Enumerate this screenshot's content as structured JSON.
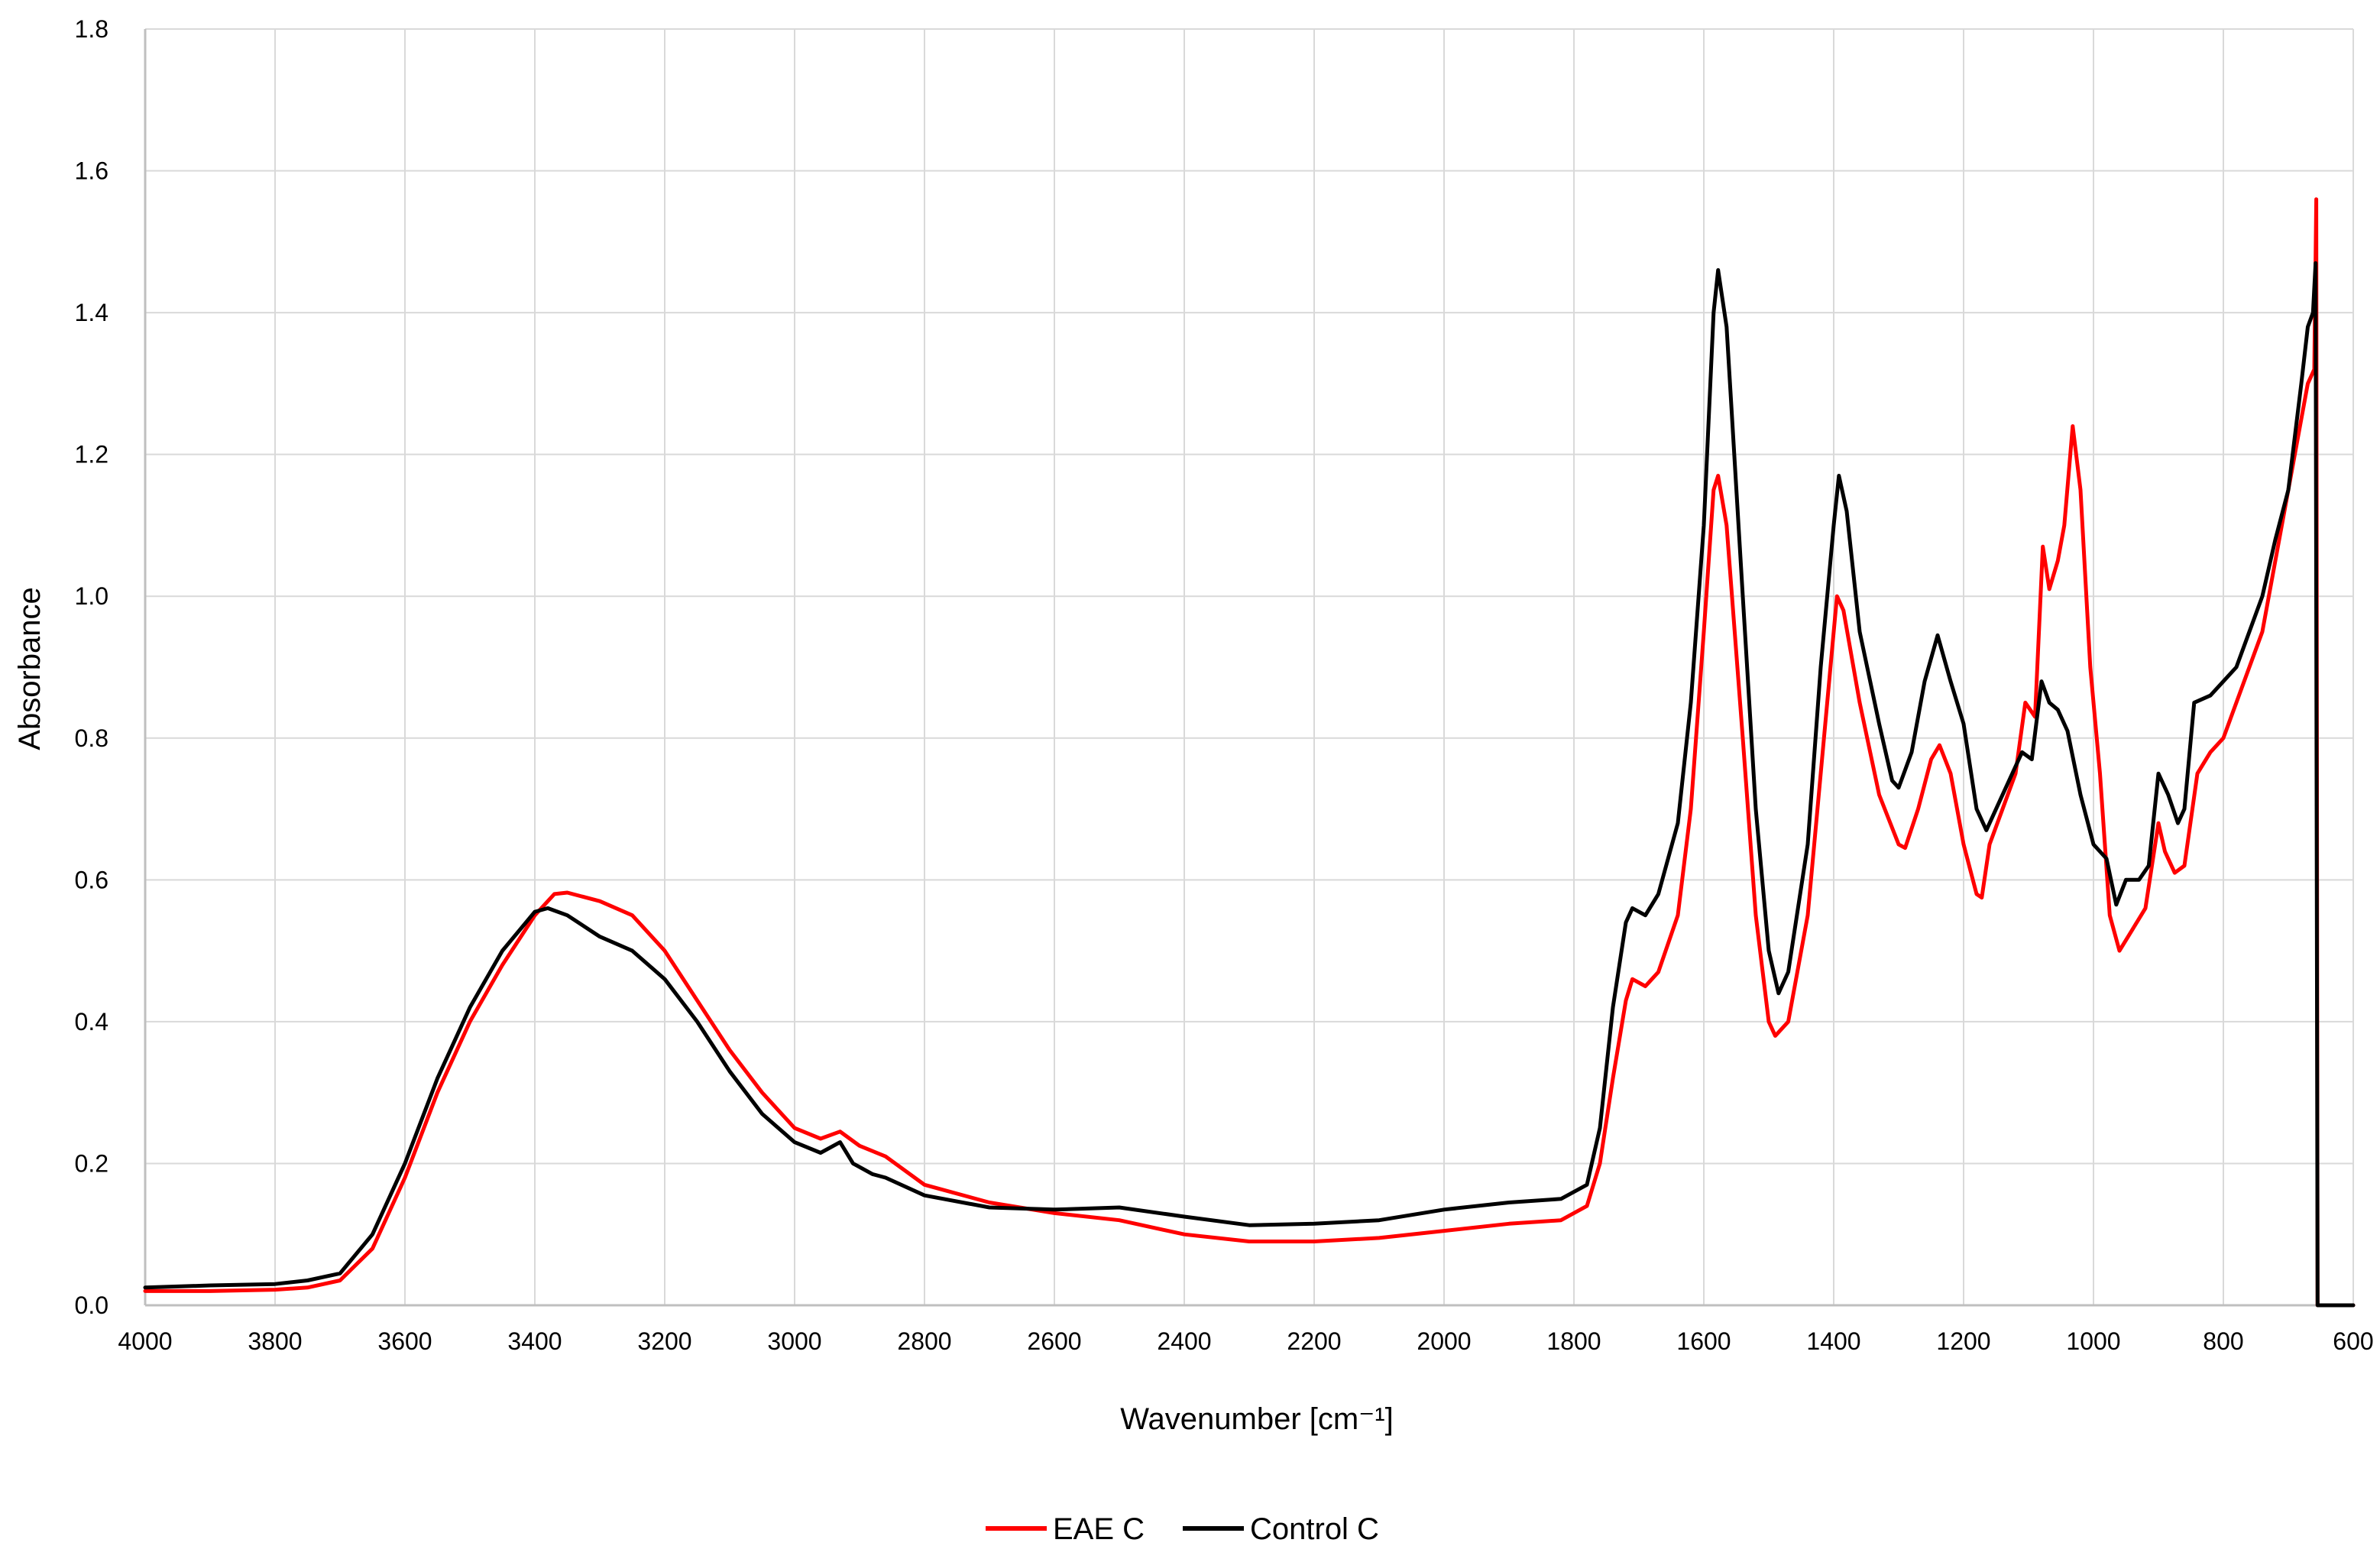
{
  "chart_data": {
    "type": "line",
    "title": "",
    "xlabel": "Wavenumber   [cm⁻¹]",
    "ylabel": "Absorbance",
    "xlim": [
      4000,
      600
    ],
    "ylim": [
      0,
      1.8
    ],
    "x_reversed": true,
    "x_ticks": [
      4000,
      3800,
      3600,
      3400,
      3200,
      3000,
      2800,
      2600,
      2400,
      2200,
      2000,
      1800,
      1600,
      1400,
      1200,
      1000,
      800,
      600
    ],
    "y_ticks": [
      0,
      0.2,
      0.4,
      0.6,
      0.8,
      1.0,
      1.2,
      1.4,
      1.6,
      1.8
    ],
    "x_tick_labels": [
      "4000",
      "3800",
      "3600",
      "3400",
      "3200",
      "3000",
      "2800",
      "2600",
      "2400",
      "2200",
      "2000",
      "1800",
      "1600",
      "1400",
      "1200",
      "1000",
      "800",
      "600"
    ],
    "y_tick_labels": [
      "0.0",
      "0.2",
      "0.4",
      "0.6",
      "0.8",
      "1.0",
      "1.2",
      "1.4",
      "1.6",
      "1.8"
    ],
    "grid": "vertical and horizontal",
    "legend_position": "bottom",
    "series": [
      {
        "name": "EAE C",
        "color": "#ff0000",
        "points": [
          [
            4000,
            0.02
          ],
          [
            3900,
            0.02
          ],
          [
            3800,
            0.022
          ],
          [
            3750,
            0.025
          ],
          [
            3700,
            0.035
          ],
          [
            3650,
            0.08
          ],
          [
            3600,
            0.18
          ],
          [
            3550,
            0.3
          ],
          [
            3500,
            0.4
          ],
          [
            3450,
            0.48
          ],
          [
            3400,
            0.55
          ],
          [
            3370,
            0.58
          ],
          [
            3350,
            0.582
          ],
          [
            3300,
            0.57
          ],
          [
            3250,
            0.55
          ],
          [
            3200,
            0.5
          ],
          [
            3150,
            0.43
          ],
          [
            3100,
            0.36
          ],
          [
            3050,
            0.3
          ],
          [
            3000,
            0.25
          ],
          [
            2960,
            0.235
          ],
          [
            2930,
            0.245
          ],
          [
            2900,
            0.225
          ],
          [
            2860,
            0.21
          ],
          [
            2800,
            0.17
          ],
          [
            2700,
            0.145
          ],
          [
            2600,
            0.13
          ],
          [
            2500,
            0.12
          ],
          [
            2400,
            0.1
          ],
          [
            2300,
            0.09
          ],
          [
            2200,
            0.09
          ],
          [
            2100,
            0.095
          ],
          [
            2000,
            0.105
          ],
          [
            1900,
            0.115
          ],
          [
            1820,
            0.12
          ],
          [
            1780,
            0.14
          ],
          [
            1760,
            0.2
          ],
          [
            1740,
            0.32
          ],
          [
            1720,
            0.43
          ],
          [
            1710,
            0.46
          ],
          [
            1690,
            0.45
          ],
          [
            1670,
            0.47
          ],
          [
            1640,
            0.55
          ],
          [
            1620,
            0.7
          ],
          [
            1600,
            0.95
          ],
          [
            1585,
            1.15
          ],
          [
            1578,
            1.17
          ],
          [
            1565,
            1.1
          ],
          [
            1540,
            0.8
          ],
          [
            1520,
            0.55
          ],
          [
            1500,
            0.4
          ],
          [
            1490,
            0.38
          ],
          [
            1470,
            0.4
          ],
          [
            1440,
            0.55
          ],
          [
            1420,
            0.75
          ],
          [
            1400,
            0.95
          ],
          [
            1395,
            1.0
          ],
          [
            1385,
            0.98
          ],
          [
            1360,
            0.85
          ],
          [
            1330,
            0.72
          ],
          [
            1300,
            0.65
          ],
          [
            1290,
            0.645
          ],
          [
            1270,
            0.7
          ],
          [
            1250,
            0.77
          ],
          [
            1237,
            0.79
          ],
          [
            1220,
            0.75
          ],
          [
            1200,
            0.65
          ],
          [
            1180,
            0.58
          ],
          [
            1172,
            0.575
          ],
          [
            1160,
            0.65
          ],
          [
            1140,
            0.7
          ],
          [
            1120,
            0.75
          ],
          [
            1105,
            0.85
          ],
          [
            1090,
            0.83
          ],
          [
            1078,
            1.07
          ],
          [
            1068,
            1.01
          ],
          [
            1055,
            1.05
          ],
          [
            1045,
            1.1
          ],
          [
            1032,
            1.24
          ],
          [
            1020,
            1.15
          ],
          [
            1005,
            0.9
          ],
          [
            990,
            0.75
          ],
          [
            975,
            0.55
          ],
          [
            960,
            0.5
          ],
          [
            940,
            0.53
          ],
          [
            920,
            0.56
          ],
          [
            900,
            0.68
          ],
          [
            890,
            0.64
          ],
          [
            875,
            0.61
          ],
          [
            860,
            0.62
          ],
          [
            840,
            0.75
          ],
          [
            820,
            0.78
          ],
          [
            800,
            0.8
          ],
          [
            780,
            0.85
          ],
          [
            760,
            0.9
          ],
          [
            740,
            0.95
          ],
          [
            720,
            1.05
          ],
          [
            700,
            1.15
          ],
          [
            680,
            1.25
          ],
          [
            670,
            1.3
          ],
          [
            660,
            1.32
          ],
          [
            657,
            1.56
          ],
          [
            655,
            0.0
          ],
          [
            640,
            0.0
          ],
          [
            600,
            0.0
          ]
        ]
      },
      {
        "name": "Control C",
        "color": "#000000",
        "points": [
          [
            4000,
            0.025
          ],
          [
            3900,
            0.028
          ],
          [
            3800,
            0.03
          ],
          [
            3750,
            0.035
          ],
          [
            3700,
            0.045
          ],
          [
            3650,
            0.1
          ],
          [
            3600,
            0.2
          ],
          [
            3550,
            0.32
          ],
          [
            3500,
            0.42
          ],
          [
            3450,
            0.5
          ],
          [
            3400,
            0.555
          ],
          [
            3380,
            0.56
          ],
          [
            3350,
            0.55
          ],
          [
            3300,
            0.52
          ],
          [
            3250,
            0.5
          ],
          [
            3200,
            0.46
          ],
          [
            3150,
            0.4
          ],
          [
            3100,
            0.33
          ],
          [
            3050,
            0.27
          ],
          [
            3000,
            0.23
          ],
          [
            2960,
            0.215
          ],
          [
            2930,
            0.23
          ],
          [
            2910,
            0.2
          ],
          [
            2880,
            0.185
          ],
          [
            2860,
            0.18
          ],
          [
            2800,
            0.155
          ],
          [
            2700,
            0.138
          ],
          [
            2600,
            0.135
          ],
          [
            2500,
            0.138
          ],
          [
            2400,
            0.125
          ],
          [
            2300,
            0.113
          ],
          [
            2200,
            0.115
          ],
          [
            2100,
            0.12
          ],
          [
            2000,
            0.135
          ],
          [
            1900,
            0.145
          ],
          [
            1820,
            0.15
          ],
          [
            1780,
            0.17
          ],
          [
            1760,
            0.25
          ],
          [
            1740,
            0.42
          ],
          [
            1720,
            0.54
          ],
          [
            1710,
            0.56
          ],
          [
            1690,
            0.55
          ],
          [
            1670,
            0.58
          ],
          [
            1640,
            0.68
          ],
          [
            1620,
            0.85
          ],
          [
            1600,
            1.1
          ],
          [
            1585,
            1.4
          ],
          [
            1578,
            1.46
          ],
          [
            1565,
            1.38
          ],
          [
            1540,
            1.0
          ],
          [
            1520,
            0.7
          ],
          [
            1500,
            0.5
          ],
          [
            1485,
            0.44
          ],
          [
            1470,
            0.47
          ],
          [
            1440,
            0.65
          ],
          [
            1420,
            0.9
          ],
          [
            1400,
            1.1
          ],
          [
            1392,
            1.17
          ],
          [
            1380,
            1.12
          ],
          [
            1360,
            0.95
          ],
          [
            1330,
            0.82
          ],
          [
            1310,
            0.74
          ],
          [
            1300,
            0.73
          ],
          [
            1280,
            0.78
          ],
          [
            1260,
            0.88
          ],
          [
            1240,
            0.945
          ],
          [
            1220,
            0.88
          ],
          [
            1200,
            0.82
          ],
          [
            1180,
            0.7
          ],
          [
            1165,
            0.67
          ],
          [
            1150,
            0.7
          ],
          [
            1130,
            0.74
          ],
          [
            1110,
            0.78
          ],
          [
            1095,
            0.77
          ],
          [
            1080,
            0.88
          ],
          [
            1068,
            0.85
          ],
          [
            1055,
            0.84
          ],
          [
            1040,
            0.81
          ],
          [
            1020,
            0.72
          ],
          [
            1000,
            0.65
          ],
          [
            980,
            0.63
          ],
          [
            965,
            0.565
          ],
          [
            950,
            0.6
          ],
          [
            930,
            0.6
          ],
          [
            915,
            0.62
          ],
          [
            900,
            0.75
          ],
          [
            885,
            0.72
          ],
          [
            870,
            0.68
          ],
          [
            860,
            0.7
          ],
          [
            845,
            0.85
          ],
          [
            820,
            0.86
          ],
          [
            800,
            0.88
          ],
          [
            780,
            0.9
          ],
          [
            760,
            0.95
          ],
          [
            740,
            1.0
          ],
          [
            720,
            1.08
          ],
          [
            700,
            1.15
          ],
          [
            680,
            1.3
          ],
          [
            670,
            1.38
          ],
          [
            662,
            1.4
          ],
          [
            658,
            1.47
          ],
          [
            655,
            0.0
          ],
          [
            640,
            0.0
          ],
          [
            600,
            0.0
          ]
        ]
      }
    ]
  }
}
